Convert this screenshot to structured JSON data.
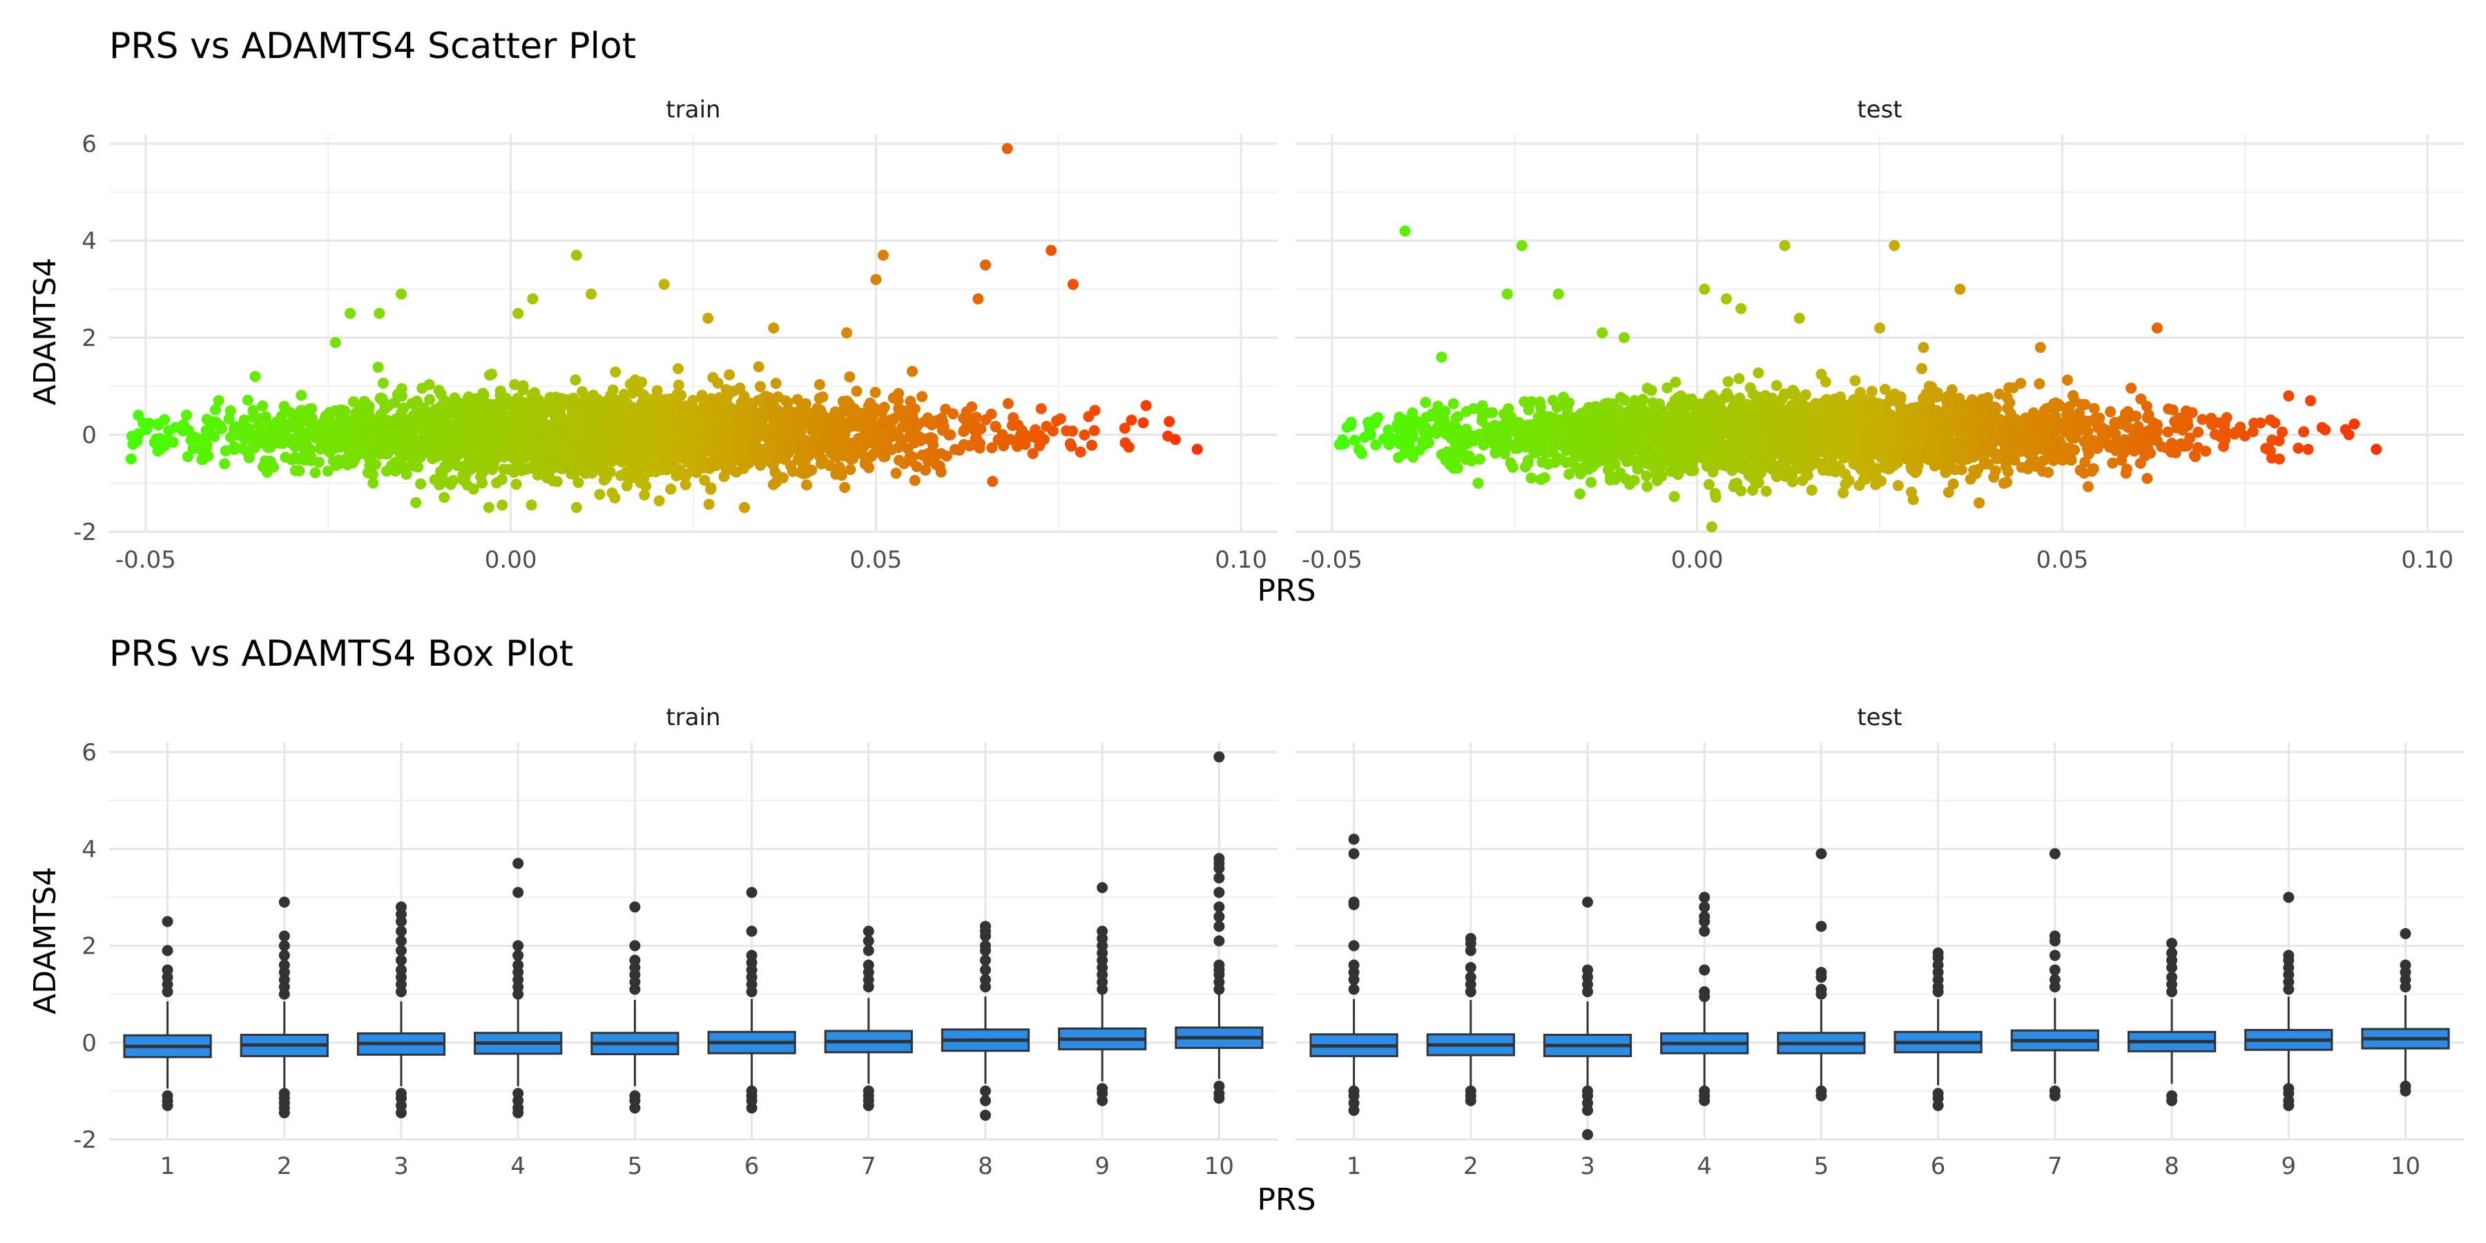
{
  "chart_data": [
    {
      "type": "scatter",
      "title": "PRS vs ADAMTS4 Scatter Plot",
      "xlabel": "PRS",
      "ylabel": "ADAMTS4",
      "facets": [
        "train",
        "test"
      ],
      "xlim": [
        -0.055,
        0.105
      ],
      "ylim": [
        -2.0,
        6.2
      ],
      "x_ticks": [
        -0.05,
        0.0,
        0.05,
        0.1
      ],
      "x_tick_labels": [
        "-0.05",
        "0.00",
        "0.05",
        "0.10"
      ],
      "y_ticks": [
        -2,
        0,
        2,
        4,
        6
      ],
      "y_tick_labels": [
        "-2",
        "0",
        "2",
        "4",
        "6"
      ],
      "color_gradient": {
        "low": "#44ff00",
        "mid": "#c4b400",
        "high": "#ff3000"
      },
      "grid": true,
      "series": [
        {
          "facet": "train",
          "x_range": [
            -0.052,
            0.094
          ],
          "cloud_y_spread": 0.45,
          "outliers": [
            [
              0.068,
              5.9
            ],
            [
              0.074,
              3.8
            ],
            [
              0.077,
              3.1
            ],
            [
              0.065,
              3.5
            ],
            [
              0.051,
              3.7
            ],
            [
              0.009,
              3.7
            ],
            [
              0.021,
              3.1
            ],
            [
              -0.015,
              2.9
            ],
            [
              0.003,
              2.8
            ],
            [
              0.011,
              2.9
            ],
            [
              0.064,
              2.8
            ],
            [
              -0.022,
              2.5
            ],
            [
              -0.018,
              2.5
            ],
            [
              0.001,
              2.5
            ],
            [
              0.05,
              3.2
            ],
            [
              0.094,
              -0.3
            ],
            [
              0.091,
              -0.1
            ],
            [
              0.087,
              0.6
            ],
            [
              -0.052,
              -0.5
            ],
            [
              -0.051,
              0.4
            ],
            [
              -0.003,
              -1.5
            ],
            [
              0.032,
              -1.5
            ],
            [
              0.009,
              -1.5
            ],
            [
              -0.013,
              -1.4
            ],
            [
              -0.024,
              1.9
            ],
            [
              0.046,
              2.1
            ],
            [
              0.036,
              2.2
            ],
            [
              0.027,
              2.4
            ],
            [
              -0.035,
              1.2
            ],
            [
              -0.04,
              0.7
            ],
            [
              0.08,
              0.5
            ],
            [
              0.085,
              0.3
            ],
            [
              -0.048,
              -0.3
            ]
          ]
        },
        {
          "facet": "test",
          "x_range": [
            -0.049,
            0.093
          ],
          "cloud_y_spread": 0.42,
          "outliers": [
            [
              -0.04,
              4.2
            ],
            [
              -0.024,
              3.9
            ],
            [
              0.012,
              3.9
            ],
            [
              0.027,
              3.9
            ],
            [
              -0.026,
              2.9
            ],
            [
              -0.019,
              2.9
            ],
            [
              0.001,
              3.0
            ],
            [
              0.004,
              2.8
            ],
            [
              0.036,
              3.0
            ],
            [
              -0.01,
              2.0
            ],
            [
              0.006,
              2.6
            ],
            [
              0.014,
              2.4
            ],
            [
              0.063,
              2.2
            ],
            [
              0.002,
              -1.9
            ],
            [
              0.093,
              -0.3
            ],
            [
              0.086,
              0.1
            ],
            [
              0.081,
              0.8
            ],
            [
              0.084,
              0.7
            ],
            [
              -0.049,
              -0.2
            ],
            [
              -0.044,
              0.3
            ],
            [
              0.025,
              2.2
            ],
            [
              0.047,
              1.8
            ],
            [
              -0.013,
              2.1
            ],
            [
              -0.035,
              1.6
            ],
            [
              0.031,
              1.8
            ],
            [
              -0.03,
              -1.0
            ],
            [
              0.02,
              -1.2
            ],
            [
              0.042,
              -1.0
            ]
          ]
        }
      ]
    },
    {
      "type": "box",
      "title": "PRS vs ADAMTS4 Box Plot",
      "xlabel": "PRS",
      "ylabel": "ADAMTS4",
      "facets": [
        "train",
        "test"
      ],
      "categories": [
        "1",
        "2",
        "3",
        "4",
        "5",
        "6",
        "7",
        "8",
        "9",
        "10"
      ],
      "ylim": [
        -2.0,
        6.2
      ],
      "y_ticks": [
        -2,
        0,
        2,
        4,
        6
      ],
      "y_tick_labels": [
        "-2",
        "0",
        "2",
        "4",
        "6"
      ],
      "box_fill": "#2b8de8",
      "outlier_color": "#333333",
      "grid": true,
      "series": [
        {
          "facet": "train",
          "boxes": [
            {
              "q1": -0.3,
              "median": -0.08,
              "q3": 0.15,
              "lower": -0.95,
              "upper": 0.85,
              "outliers": [
                2.5,
                1.9,
                1.5,
                1.35,
                1.2,
                1.05,
                -1.1,
                -1.2,
                -1.3
              ]
            },
            {
              "q1": -0.28,
              "median": -0.05,
              "q3": 0.16,
              "lower": -0.95,
              "upper": 0.85,
              "outliers": [
                2.9,
                2.2,
                2.0,
                1.8,
                1.6,
                1.45,
                1.3,
                1.15,
                1.0,
                -1.05,
                -1.15,
                -1.25,
                -1.35,
                -1.45
              ]
            },
            {
              "q1": -0.25,
              "median": -0.02,
              "q3": 0.19,
              "lower": -0.9,
              "upper": 0.85,
              "outliers": [
                2.8,
                2.65,
                2.5,
                2.3,
                2.1,
                1.9,
                1.7,
                1.5,
                1.35,
                1.2,
                1.05,
                -1.05,
                -1.15,
                -1.3,
                -1.45
              ]
            },
            {
              "q1": -0.23,
              "median": -0.01,
              "q3": 0.2,
              "lower": -0.9,
              "upper": 0.9,
              "outliers": [
                3.7,
                3.1,
                2.0,
                1.8,
                1.6,
                1.45,
                1.3,
                1.15,
                1.0,
                -1.05,
                -1.2,
                -1.35,
                -1.45
              ]
            },
            {
              "q1": -0.24,
              "median": -0.02,
              "q3": 0.2,
              "lower": -0.9,
              "upper": 0.88,
              "outliers": [
                2.8,
                2.0,
                1.7,
                1.55,
                1.4,
                1.25,
                1.1,
                -1.1,
                -1.2,
                -1.35
              ]
            },
            {
              "q1": -0.22,
              "median": 0.0,
              "q3": 0.22,
              "lower": -0.9,
              "upper": 0.9,
              "outliers": [
                3.1,
                2.3,
                1.8,
                1.65,
                1.5,
                1.35,
                1.2,
                1.05,
                -1.0,
                -1.1,
                -1.2,
                -1.35
              ]
            },
            {
              "q1": -0.2,
              "median": 0.02,
              "q3": 0.24,
              "lower": -0.85,
              "upper": 0.92,
              "outliers": [
                2.3,
                2.1,
                1.9,
                1.6,
                1.45,
                1.3,
                1.15,
                -1.0,
                -1.1,
                -1.2,
                -1.3
              ]
            },
            {
              "q1": -0.17,
              "median": 0.05,
              "q3": 0.27,
              "lower": -0.85,
              "upper": 0.95,
              "outliers": [
                2.4,
                2.3,
                2.2,
                2.0,
                1.9,
                1.7,
                1.5,
                1.3,
                1.15,
                -1.0,
                -1.2,
                -1.5
              ]
            },
            {
              "q1": -0.14,
              "median": 0.07,
              "q3": 0.29,
              "lower": -0.8,
              "upper": 1.0,
              "outliers": [
                3.2,
                2.3,
                2.15,
                2.0,
                1.85,
                1.7,
                1.55,
                1.4,
                1.25,
                1.1,
                -0.95,
                -1.05,
                -1.2
              ]
            },
            {
              "q1": -0.11,
              "median": 0.1,
              "q3": 0.31,
              "lower": -0.75,
              "upper": 1.0,
              "outliers": [
                5.9,
                3.8,
                3.7,
                3.6,
                3.4,
                3.1,
                2.8,
                2.6,
                2.4,
                2.1,
                1.6,
                1.5,
                1.4,
                1.25,
                1.1,
                -0.9,
                -1.05,
                -1.15
              ]
            }
          ]
        },
        {
          "facet": "test",
          "boxes": [
            {
              "q1": -0.28,
              "median": -0.07,
              "q3": 0.17,
              "lower": -0.95,
              "upper": 0.9,
              "outliers": [
                4.2,
                3.9,
                2.9,
                2.85,
                2.0,
                1.6,
                1.45,
                1.3,
                1.1,
                -1.0,
                -1.1,
                -1.25,
                -1.4
              ]
            },
            {
              "q1": -0.26,
              "median": -0.05,
              "q3": 0.17,
              "lower": -0.95,
              "upper": 0.88,
              "outliers": [
                2.15,
                2.05,
                1.9,
                1.55,
                1.35,
                1.2,
                1.05,
                -1.0,
                -1.1,
                -1.2
              ]
            },
            {
              "q1": -0.28,
              "median": -0.06,
              "q3": 0.16,
              "lower": -0.95,
              "upper": 0.85,
              "outliers": [
                2.9,
                1.5,
                1.35,
                1.2,
                1.05,
                -1.0,
                -1.1,
                -1.25,
                -1.4,
                -1.9
              ]
            },
            {
              "q1": -0.22,
              "median": -0.02,
              "q3": 0.19,
              "lower": -0.9,
              "upper": 0.88,
              "outliers": [
                3.0,
                2.8,
                2.6,
                2.5,
                2.3,
                1.5,
                1.05,
                0.95,
                -1.0,
                -1.1,
                -1.2
              ]
            },
            {
              "q1": -0.22,
              "median": -0.02,
              "q3": 0.2,
              "lower": -0.9,
              "upper": 0.88,
              "outliers": [
                3.9,
                2.4,
                1.45,
                1.35,
                1.1,
                1.0,
                -1.0,
                -1.1
              ]
            },
            {
              "q1": -0.2,
              "median": 0.0,
              "q3": 0.22,
              "lower": -0.88,
              "upper": 0.9,
              "outliers": [
                1.85,
                1.75,
                1.6,
                1.45,
                1.3,
                1.15,
                1.05,
                -1.05,
                -1.15,
                -1.3
              ]
            },
            {
              "q1": -0.16,
              "median": 0.04,
              "q3": 0.25,
              "lower": -0.85,
              "upper": 0.92,
              "outliers": [
                3.9,
                2.2,
                2.1,
                1.8,
                1.5,
                1.3,
                1.15,
                -1.0,
                -1.1
              ]
            },
            {
              "q1": -0.18,
              "median": 0.02,
              "q3": 0.22,
              "lower": -0.85,
              "upper": 0.9,
              "outliers": [
                2.05,
                1.85,
                1.7,
                1.55,
                1.35,
                1.2,
                1.05,
                -1.1,
                -1.2
              ]
            },
            {
              "q1": -0.15,
              "median": 0.05,
              "q3": 0.26,
              "lower": -0.85,
              "upper": 0.95,
              "outliers": [
                3.0,
                1.8,
                1.7,
                1.55,
                1.4,
                1.25,
                1.1,
                -0.95,
                -1.05,
                -1.2,
                -1.3
              ]
            },
            {
              "q1": -0.12,
              "median": 0.08,
              "q3": 0.28,
              "lower": -0.8,
              "upper": 0.98,
              "outliers": [
                2.25,
                1.6,
                1.45,
                1.3,
                1.15,
                -0.9,
                -1.0
              ]
            }
          ]
        }
      ]
    }
  ]
}
